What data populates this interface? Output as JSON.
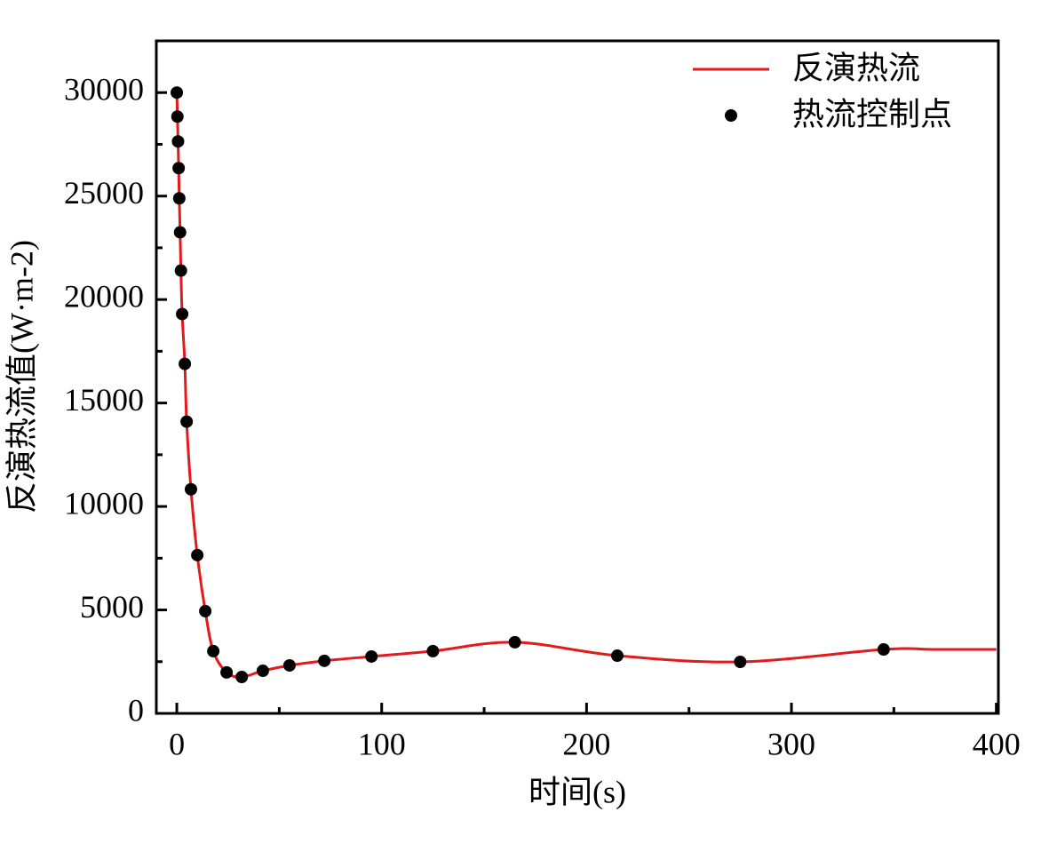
{
  "chart_data": {
    "type": "line-scatter",
    "xlabel": "时间(s)",
    "ylabel": "反演热流值(W·m-2)",
    "xlim": [
      -10,
      401
    ],
    "ylim": [
      0,
      32500
    ],
    "xticks": [
      0,
      100,
      200,
      300,
      400
    ],
    "xminorticks": [
      50,
      150,
      250,
      350
    ],
    "yticks": [
      0,
      5000,
      10000,
      15000,
      20000,
      25000,
      30000
    ],
    "yminorticks": [
      2500,
      7500,
      12500,
      17500,
      22500,
      27500
    ],
    "legend": "upper right",
    "series": [
      {
        "name": "反演热流",
        "kind": "line",
        "color": "#e31a1c",
        "x": [
          0,
          0.3,
          0.6,
          0.9,
          1.2,
          1.6,
          2,
          2.6,
          3.9,
          4.8,
          6.9,
          10,
          13.9,
          17.8,
          24.3,
          31.7,
          42,
          55,
          72,
          95,
          125,
          165,
          215,
          275,
          345,
          370,
          400
        ],
        "values": [
          30000,
          28840,
          27640,
          26350,
          24890,
          23250,
          21400,
          19300,
          16890,
          14100,
          10830,
          7650,
          4940,
          3010,
          1980,
          1760,
          2060,
          2320,
          2540,
          2750,
          3010,
          3440,
          2790,
          2490,
          3090,
          3090,
          3090
        ]
      },
      {
        "name": "热流控制点",
        "kind": "scatter",
        "color": "#000000",
        "x": [
          0,
          0.3,
          0.6,
          0.9,
          1.2,
          1.6,
          2,
          2.6,
          3.9,
          4.8,
          6.9,
          10,
          13.9,
          17.8,
          24.3,
          31.7,
          42,
          55,
          72,
          95,
          125,
          165,
          215,
          275,
          345
        ],
        "values": [
          30000,
          28840,
          27640,
          26350,
          24890,
          23250,
          21400,
          19300,
          16890,
          14100,
          10830,
          7650,
          4940,
          3010,
          1980,
          1760,
          2060,
          2320,
          2540,
          2750,
          3010,
          3440,
          2790,
          2490,
          3090
        ]
      }
    ]
  }
}
